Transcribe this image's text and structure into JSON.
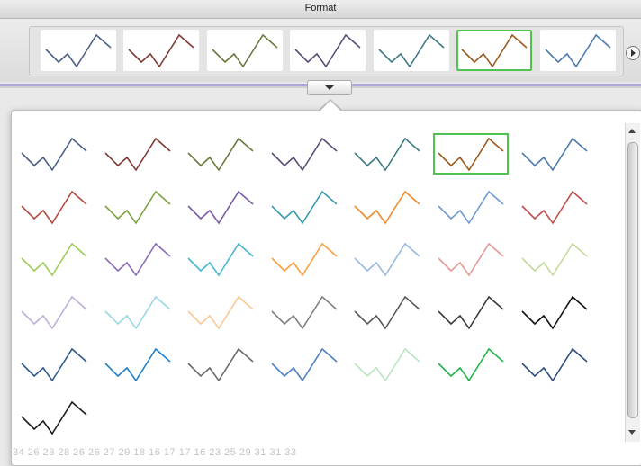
{
  "window": {
    "title": "Format"
  },
  "ribbon": {
    "visible_styles": [
      {
        "color": "#4b6286",
        "selected": false
      },
      {
        "color": "#7f3b33",
        "selected": false
      },
      {
        "color": "#6a7a40",
        "selected": false
      },
      {
        "color": "#5b4d77",
        "selected": false
      },
      {
        "color": "#3f7a82",
        "selected": false
      },
      {
        "color": "#9b5a20",
        "selected": true
      },
      {
        "color": "#4d7bad",
        "selected": false
      }
    ]
  },
  "gallery": {
    "styles": [
      {
        "color": "#4b6286",
        "selected": false
      },
      {
        "color": "#7f3b33",
        "selected": false
      },
      {
        "color": "#6a7a40",
        "selected": false
      },
      {
        "color": "#5b4d77",
        "selected": false
      },
      {
        "color": "#3f7a82",
        "selected": false
      },
      {
        "color": "#9b5a20",
        "selected": true
      },
      {
        "color": "#4d7bad",
        "selected": false
      },
      {
        "color": "#b24a44",
        "selected": false
      },
      {
        "color": "#7fa144",
        "selected": false
      },
      {
        "color": "#7a5ba6",
        "selected": false
      },
      {
        "color": "#3a9bae",
        "selected": false
      },
      {
        "color": "#f08a2c",
        "selected": false
      },
      {
        "color": "#6e9ad4",
        "selected": false
      },
      {
        "color": "#c0504d",
        "selected": false
      },
      {
        "color": "#9ccc5a",
        "selected": false
      },
      {
        "color": "#8a6bb8",
        "selected": false
      },
      {
        "color": "#48b6cf",
        "selected": false
      },
      {
        "color": "#f6a043",
        "selected": false
      },
      {
        "color": "#9bb8e0",
        "selected": false
      },
      {
        "color": "#e49a95",
        "selected": false
      },
      {
        "color": "#c4da9c",
        "selected": false
      },
      {
        "color": "#c0afd8",
        "selected": false
      },
      {
        "color": "#98d7e3",
        "selected": false
      },
      {
        "color": "#fbc894",
        "selected": false
      },
      {
        "color": "#808080",
        "selected": false
      },
      {
        "color": "#595959",
        "selected": false
      },
      {
        "color": "#3a3a3a",
        "selected": false
      },
      {
        "color": "#111111",
        "selected": false
      },
      {
        "color": "#2f5a8c",
        "selected": false
      },
      {
        "color": "#1f80c9",
        "selected": false
      },
      {
        "color": "#6b6b6b",
        "selected": false
      },
      {
        "color": "#4f7fc4",
        "selected": false
      },
      {
        "color": "#b8e6c0",
        "selected": false
      },
      {
        "color": "#1fb54a",
        "selected": false
      },
      {
        "color": "#2e4f80",
        "selected": false
      },
      {
        "color": "#1e1e1e",
        "selected": false
      }
    ]
  },
  "background_numbers": "34  26  28  28  26  26  27  29  18  16  17  17  16  23  25  29  31  31  33"
}
